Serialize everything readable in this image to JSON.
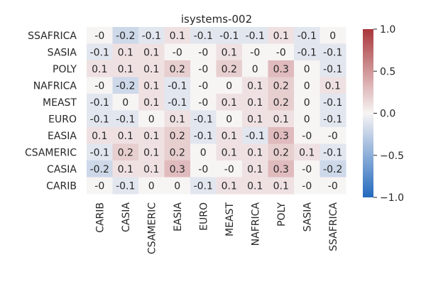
{
  "chart_data": {
    "type": "heatmap",
    "title": "isystems-002",
    "rows": [
      "SSAFRICA",
      "SASIA",
      "POLY",
      "NAFRICA",
      "MEAST",
      "EURO",
      "EASIA",
      "CSAMERIC",
      "CASIA",
      "CARIB"
    ],
    "columns": [
      "CARIB",
      "CASIA",
      "CSAMERIC",
      "EASIA",
      "EURO",
      "MEAST",
      "NAFRICA",
      "POLY",
      "SASIA",
      "SSAFRICA"
    ],
    "values": [
      [
        -0.0,
        -0.2,
        -0.1,
        0.1,
        -0.1,
        -0.1,
        -0.1,
        0.1,
        -0.1,
        0.0
      ],
      [
        -0.1,
        0.1,
        0.1,
        -0.0,
        -0.0,
        0.1,
        -0.0,
        -0.0,
        -0.1,
        -0.1
      ],
      [
        0.1,
        0.1,
        0.1,
        0.2,
        -0.0,
        0.2,
        0.0,
        0.3,
        0.0,
        -0.1
      ],
      [
        -0.0,
        -0.2,
        0.1,
        -0.1,
        -0.0,
        0.0,
        0.1,
        0.2,
        0.0,
        0.1
      ],
      [
        -0.1,
        0.0,
        0.1,
        -0.1,
        -0.0,
        0.1,
        0.1,
        0.2,
        0.0,
        -0.1
      ],
      [
        -0.1,
        -0.1,
        0.0,
        0.1,
        -0.1,
        0.0,
        0.1,
        0.1,
        0.0,
        -0.1
      ],
      [
        0.1,
        0.1,
        0.1,
        0.2,
        -0.1,
        0.1,
        -0.1,
        0.3,
        -0.0,
        -0.0
      ],
      [
        -0.1,
        0.2,
        0.1,
        0.2,
        0.0,
        0.1,
        0.1,
        0.2,
        0.1,
        -0.1
      ],
      [
        -0.2,
        0.1,
        0.1,
        0.3,
        -0.0,
        -0.0,
        0.1,
        0.3,
        -0.0,
        -0.2
      ],
      [
        -0.0,
        -0.1,
        0.0,
        0.0,
        -0.1,
        0.1,
        0.1,
        0.1,
        -0.0,
        -0.0
      ]
    ],
    "labels": [
      [
        "-0",
        "-0.2",
        "-0.1",
        "0.1",
        "-0.1",
        "-0.1",
        "-0.1",
        "0.1",
        "-0.1",
        "0"
      ],
      [
        "-0.1",
        "0.1",
        "0.1",
        "-0",
        "-0",
        "0.1",
        "-0",
        "-0",
        "-0.1",
        "-0.1"
      ],
      [
        "0.1",
        "0.1",
        "0.1",
        "0.2",
        "-0",
        "0.2",
        "0",
        "0.3",
        "0",
        "-0.1"
      ],
      [
        "-0",
        "-0.2",
        "0.1",
        "-0.1",
        "-0",
        "0",
        "0.1",
        "0.2",
        "0",
        "0.1"
      ],
      [
        "-0.1",
        "0",
        "0.1",
        "-0.1",
        "-0",
        "0.1",
        "0.1",
        "0.2",
        "0",
        "-0.1"
      ],
      [
        "-0.1",
        "-0.1",
        "0",
        "0.1",
        "-0.1",
        "0",
        "0.1",
        "0.1",
        "0",
        "-0.1"
      ],
      [
        "0.1",
        "0.1",
        "0.1",
        "0.2",
        "-0.1",
        "0.1",
        "-0.1",
        "0.3",
        "-0",
        "-0"
      ],
      [
        "-0.1",
        "0.2",
        "0.1",
        "0.2",
        "0",
        "0.1",
        "0.1",
        "0.2",
        "0.1",
        "-0.1"
      ],
      [
        "-0.2",
        "0.1",
        "0.1",
        "0.3",
        "-0",
        "-0",
        "0.1",
        "0.3",
        "-0",
        "-0.2"
      ],
      [
        "-0",
        "-0.1",
        "0",
        "0",
        "-0.1",
        "0.1",
        "0.1",
        "0.1",
        "-0",
        "-0"
      ]
    ],
    "vmin": -1.0,
    "vmax": 1.0,
    "colormap": "vlag",
    "colorbar": {
      "ticks": [
        1.0,
        0.5,
        0.0,
        -0.5,
        -1.0
      ],
      "tick_labels": [
        "1.0",
        "0.5",
        "0.0",
        "−0.5",
        "−1.0"
      ]
    },
    "colors": {
      "negative": "#2369bd",
      "neutral": "#f7f4f4",
      "positive": "#a9373b",
      "text": "#262626"
    },
    "grid": false
  }
}
